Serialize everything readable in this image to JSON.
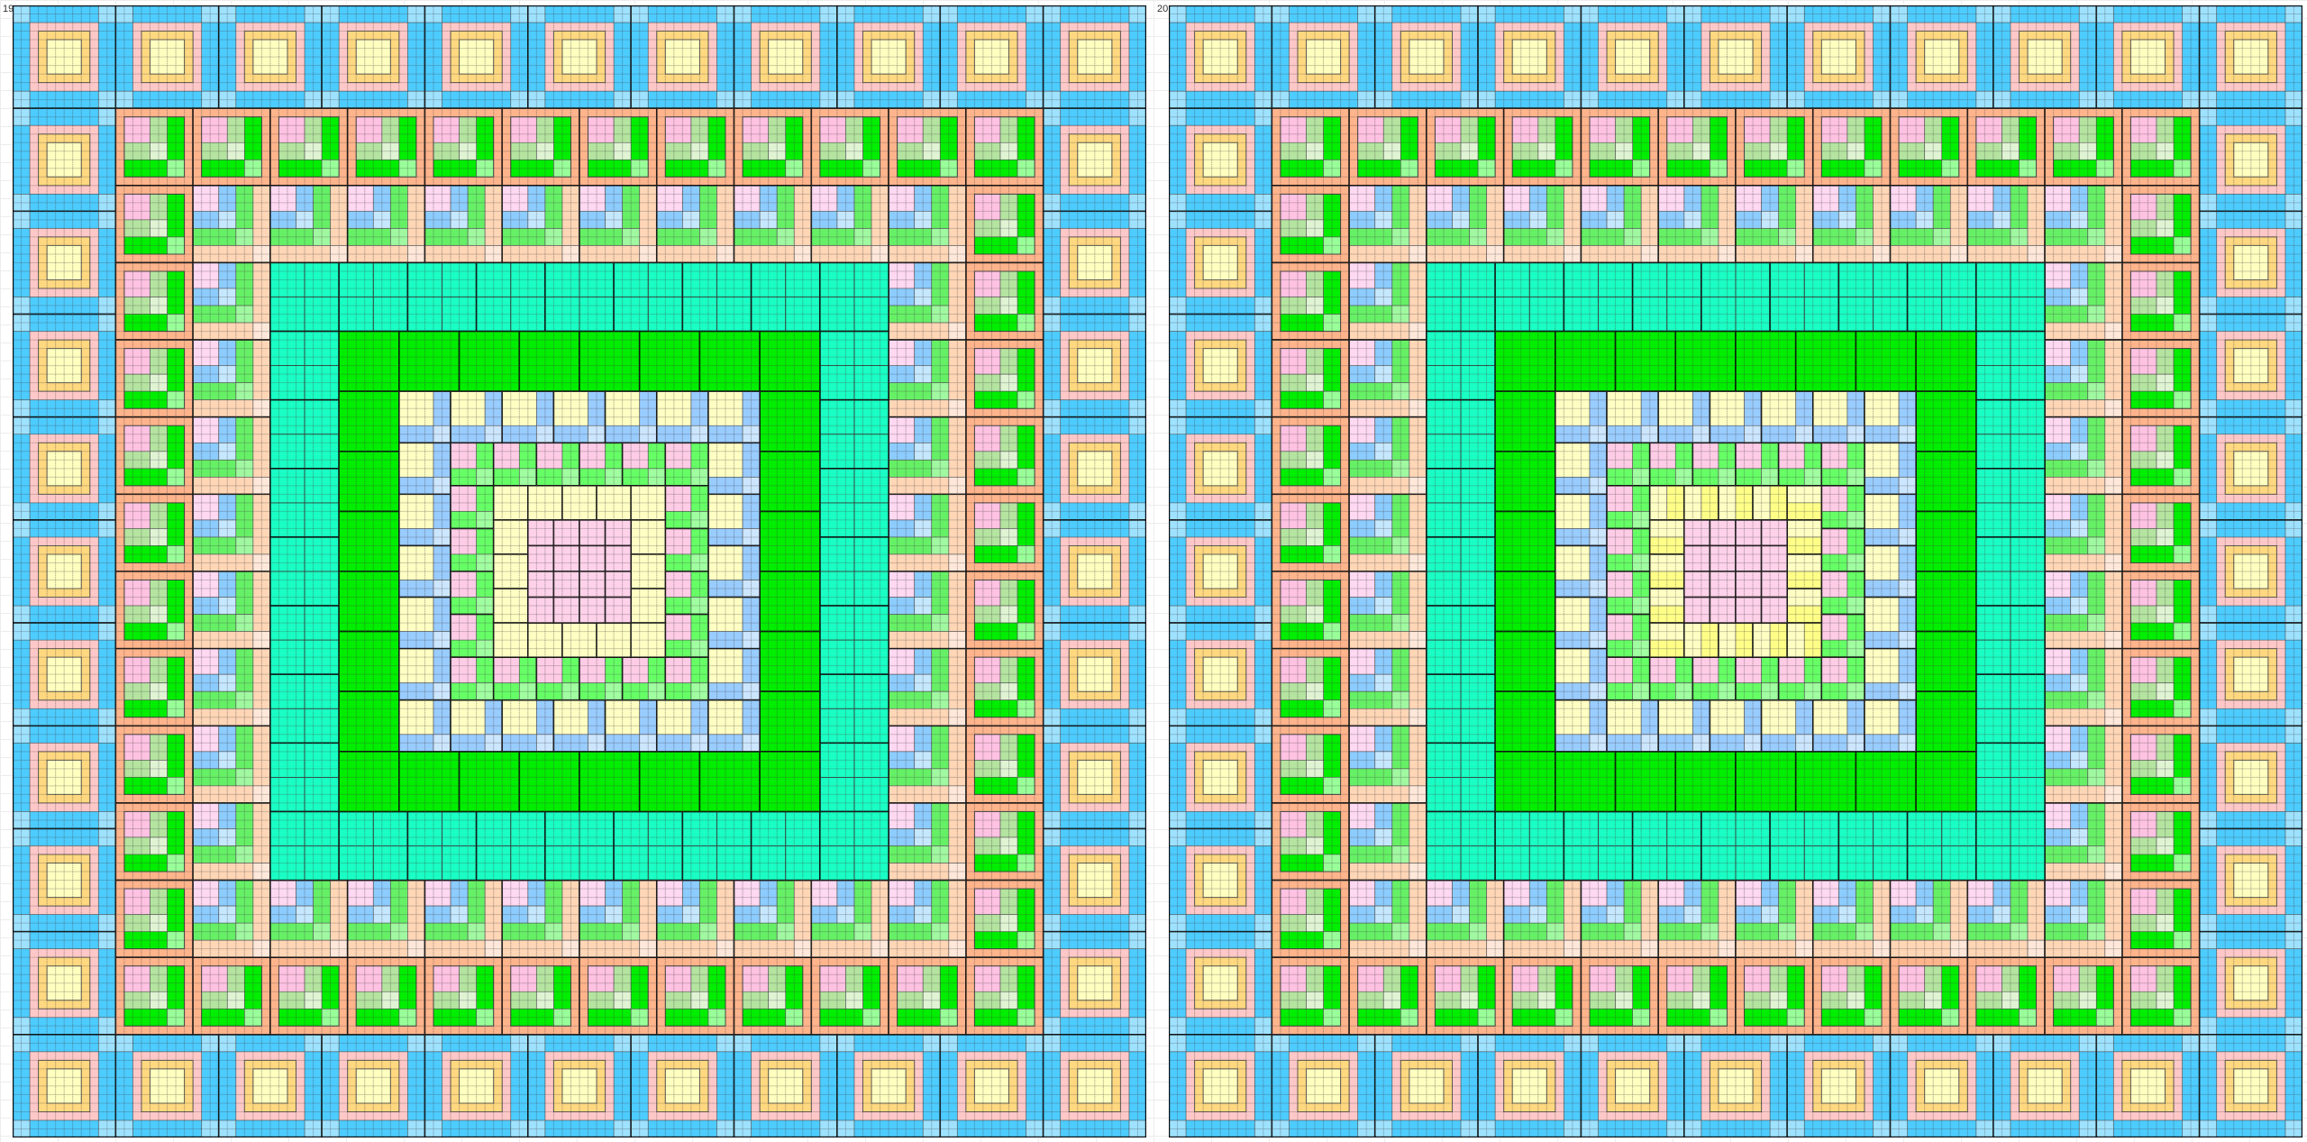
{
  "panels": [
    {
      "label": "19",
      "yellow_ring_split": false
    },
    {
      "label": "20",
      "yellow_ring_split": true
    }
  ],
  "colors": {
    "outer_blue": "#4DCCFF",
    "outer_corner": "#9EE2FF",
    "outer_pink": "#FFC8C8",
    "outer_orange": "#FFD880",
    "outer_yellow": "#FFFFC0",
    "a_orange": "#FFB48C",
    "a_pink": "#FFC2E2",
    "a_lgreen": "#B4E4A0",
    "a_vlgreen": "#E0F4D4",
    "a_green": "#00EE00",
    "a_green2": "#99FF99",
    "b_pink": "#FFD8F2",
    "b_blue": "#8CCCFF",
    "b_lblue": "#C6E8FF",
    "b_green": "#66F066",
    "b_lgreen": "#A0F8A0",
    "b_peach": "#FFD6B6",
    "b_lpeach": "#FFE8DA",
    "teal": "#1AFFC4",
    "green": "#00EE00",
    "yb_yellow": "#FFFFC4",
    "yb_blue": "#99CCFF",
    "yb_lblue": "#CCE6FF",
    "pg_pink": "#FFCCE6",
    "pg_green": "#66FF66",
    "pg_lgreen": "#A0FFA0",
    "yellow": "#FFFFC4",
    "yellow_bright": "#FFFF88",
    "pink": "#FFD2EA"
  }
}
